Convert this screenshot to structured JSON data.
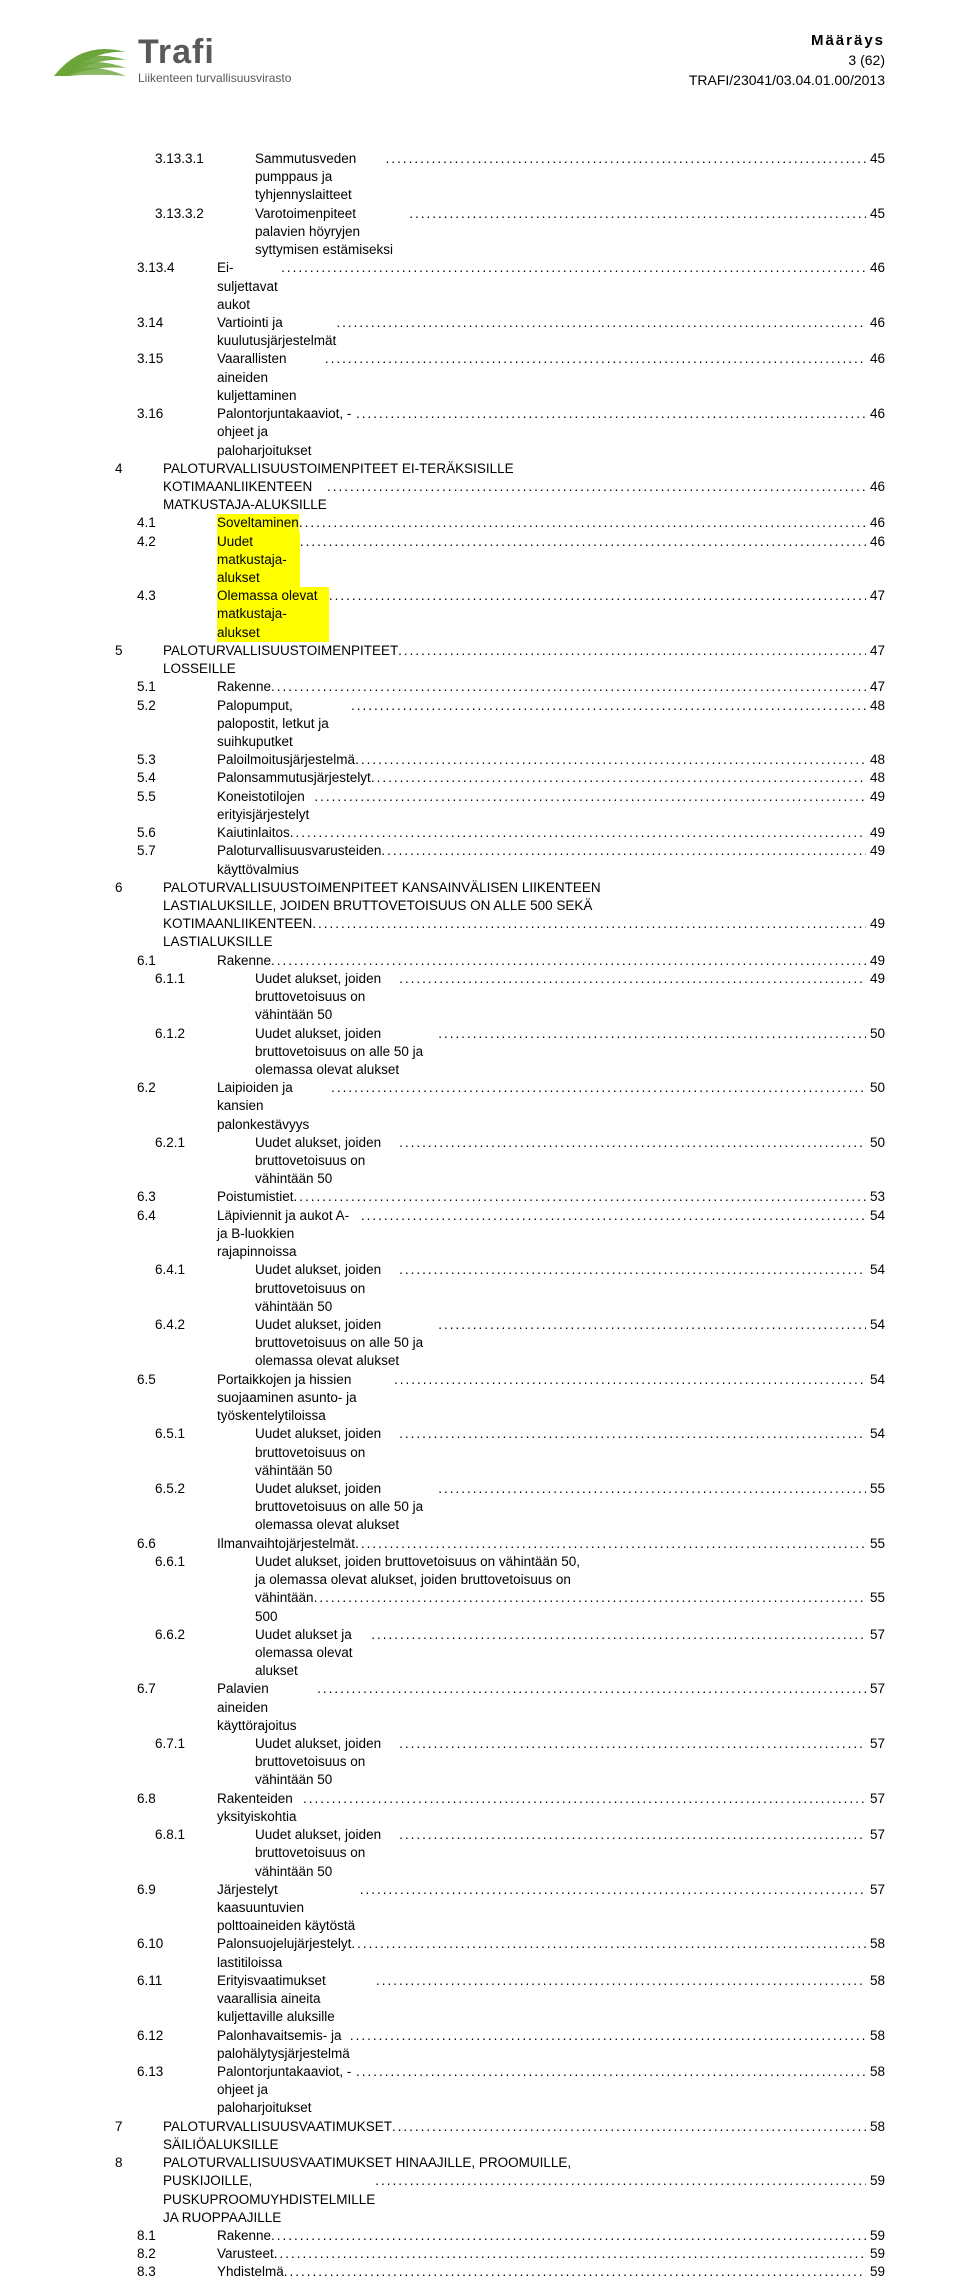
{
  "header": {
    "logo_main": "Trafi",
    "logo_sub": "Liikenteen turvallisuusvirasto",
    "title": "Määräys",
    "page_count": "3 (62)",
    "doc_ref": "TRAFI/23041/03.04.01.00/2013",
    "colors": {
      "logo_green": "#6ba53a",
      "logo_grey": "#58595b",
      "highlight": "#ffff00"
    }
  },
  "toc": [
    {
      "num": "3.13.3.1",
      "title": "Sammutusveden pumppaus ja tyhjennyslaitteet",
      "page": "45",
      "indent": 2
    },
    {
      "num": "3.13.3.2",
      "title": "Varotoimenpiteet palavien höyryjen syttymisen estämiseksi",
      "page": "45",
      "indent": 2
    },
    {
      "num": "3.13.4",
      "title": "Ei-suljettavat aukot",
      "page": "46",
      "indent": 1
    },
    {
      "num": "3.14",
      "title": "Vartiointi ja kuulutusjärjestelmät",
      "page": "46",
      "indent": 1
    },
    {
      "num": "3.15",
      "title": "Vaarallisten aineiden kuljettaminen",
      "page": "46",
      "indent": 1
    },
    {
      "num": "3.16",
      "title": "Palontorjuntakaaviot, -ohjeet ja paloharjoitukset",
      "page": "46",
      "indent": 1
    },
    {
      "num": "4",
      "title": "PALOTURVALLISUUSTOIMENPITEET EI-TERÄKSISILLE KOTIMAANLIIKENTEEN MATKUSTAJA-ALUKSILLE",
      "page": "46",
      "indent": 0,
      "wrap": true
    },
    {
      "num": "4.1",
      "title": "Soveltaminen",
      "page": "46",
      "indent": 1,
      "highlight": true
    },
    {
      "num": "4.2",
      "title": "Uudet matkustaja-alukset",
      "page": "46",
      "indent": 1,
      "highlight": true
    },
    {
      "num": "4.3",
      "title": "Olemassa olevat matkustaja-alukset",
      "page": "47",
      "indent": 1,
      "highlight": true
    },
    {
      "num": "5",
      "title": "PALOTURVALLISUUSTOIMENPITEET LOSSEILLE",
      "page": "47",
      "indent": 0
    },
    {
      "num": "5.1",
      "title": "Rakenne",
      "page": "47",
      "indent": 1
    },
    {
      "num": "5.2",
      "title": "Palopumput, palopostit, letkut ja suihkuputket",
      "page": "48",
      "indent": 1
    },
    {
      "num": "5.3",
      "title": "Paloilmoitusjärjestelmä",
      "page": "48",
      "indent": 1
    },
    {
      "num": "5.4",
      "title": "Palonsammutusjärjestelyt",
      "page": "48",
      "indent": 1
    },
    {
      "num": "5.5",
      "title": "Koneistotilojen erityisjärjestelyt",
      "page": "49",
      "indent": 1
    },
    {
      "num": "5.6",
      "title": "Kaiutinlaitos",
      "page": "49",
      "indent": 1
    },
    {
      "num": "5.7",
      "title": "Paloturvallisuusvarusteiden käyttövalmius",
      "page": "49",
      "indent": 1
    },
    {
      "num": "6",
      "title": "PALOTURVALLISUUSTOIMENPITEET KANSAINVÄLISEN LIIKENTEEN LASTIALUKSILLE, JOIDEN BRUTTOVETOISUUS ON ALLE 500 SEKÄ KOTIMAANLIIKENTEEN LASTIALUKSILLE",
      "page": "49",
      "indent": 0,
      "wrap": true
    },
    {
      "num": "6.1",
      "title": "Rakenne",
      "page": "49",
      "indent": 1
    },
    {
      "num": "6.1.1",
      "title": "Uudet alukset, joiden bruttovetoisuus on vähintään 50",
      "page": "49",
      "indent": 2
    },
    {
      "num": "6.1.2",
      "title": "Uudet alukset, joiden bruttovetoisuus on alle 50 ja olemassa olevat alukset",
      "page": "50",
      "indent": 2
    },
    {
      "num": "6.2",
      "title": "Laipioiden ja kansien palonkestävyys",
      "page": "50",
      "indent": 1
    },
    {
      "num": "6.2.1",
      "title": "Uudet alukset, joiden bruttovetoisuus on vähintään 50",
      "page": "50",
      "indent": 2
    },
    {
      "num": "6.3",
      "title": "Poistumistiet",
      "page": "53",
      "indent": 1
    },
    {
      "num": "6.4",
      "title": "Läpiviennit ja aukot A- ja B-luokkien rajapinnoissa",
      "page": "54",
      "indent": 1
    },
    {
      "num": "6.4.1",
      "title": "Uudet alukset, joiden bruttovetoisuus on vähintään 50",
      "page": "54",
      "indent": 2
    },
    {
      "num": "6.4.2",
      "title": "Uudet alukset, joiden bruttovetoisuus on alle 50 ja olemassa olevat alukset",
      "page": "54",
      "indent": 2
    },
    {
      "num": "6.5",
      "title": "Portaikkojen ja hissien suojaaminen asunto- ja työskentelytiloissa",
      "page": "54",
      "indent": 1
    },
    {
      "num": "6.5.1",
      "title": "Uudet alukset, joiden bruttovetoisuus on vähintään 50",
      "page": "54",
      "indent": 2
    },
    {
      "num": "6.5.2",
      "title": "Uudet alukset, joiden bruttovetoisuus on alle 50 ja olemassa olevat alukset",
      "page": "55",
      "indent": 2
    },
    {
      "num": "6.6",
      "title": "Ilmanvaihtojärjestelmät",
      "page": "55",
      "indent": 1
    },
    {
      "num": "6.6.1",
      "title": "Uudet alukset, joiden bruttovetoisuus on vähintään 50, ja olemassa olevat alukset, joiden bruttovetoisuus on vähintään 500",
      "page": "55",
      "indent": 2,
      "wrap": true
    },
    {
      "num": "6.6.2",
      "title": "Uudet alukset ja olemassa olevat alukset",
      "page": "57",
      "indent": 2
    },
    {
      "num": "6.7",
      "title": "Palavien aineiden käyttörajoitus",
      "page": "57",
      "indent": 1
    },
    {
      "num": "6.7.1",
      "title": "Uudet alukset, joiden bruttovetoisuus on vähintään 50",
      "page": "57",
      "indent": 2
    },
    {
      "num": "6.8",
      "title": "Rakenteiden yksityiskohtia",
      "page": "57",
      "indent": 1
    },
    {
      "num": "6.8.1",
      "title": "Uudet alukset, joiden bruttovetoisuus on vähintään 50",
      "page": "57",
      "indent": 2
    },
    {
      "num": "6.9",
      "title": "Järjestelyt kaasuuntuvien polttoaineiden käytöstä",
      "page": "57",
      "indent": 1
    },
    {
      "num": "6.10",
      "title": "Palonsuojelujärjestelyt lastitiloissa",
      "page": "58",
      "indent": 1
    },
    {
      "num": "6.11",
      "title": "Erityisvaatimukset vaarallisia aineita kuljettaville aluksille",
      "page": "58",
      "indent": 1
    },
    {
      "num": "6.12",
      "title": "Palonhavaitsemis- ja palohälytysjärjestelmä",
      "page": "58",
      "indent": 1
    },
    {
      "num": "6.13",
      "title": "Palontorjuntakaaviot, -ohjeet ja paloharjoitukset",
      "page": "58",
      "indent": 1
    },
    {
      "num": "7",
      "title": "PALOTURVALLISUUSVAATIMUKSET SÄILIÖALUKSILLE",
      "page": "58",
      "indent": 0
    },
    {
      "num": "8",
      "title": "PALOTURVALLISUUSVAATIMUKSET HINAAJILLE, PROOMUILLE, PUSKIJOILLE, PUSKUPROOMUYHDISTELMILLE JA RUOPPAAJILLE",
      "page": "59",
      "indent": 0,
      "wrap": true
    },
    {
      "num": "8.1",
      "title": "Rakenne",
      "page": "59",
      "indent": 1
    },
    {
      "num": "8.2",
      "title": "Varusteet",
      "page": "59",
      "indent": 1
    },
    {
      "num": "8.3",
      "title": "Yhdistelmä",
      "page": "59",
      "indent": 1
    }
  ]
}
